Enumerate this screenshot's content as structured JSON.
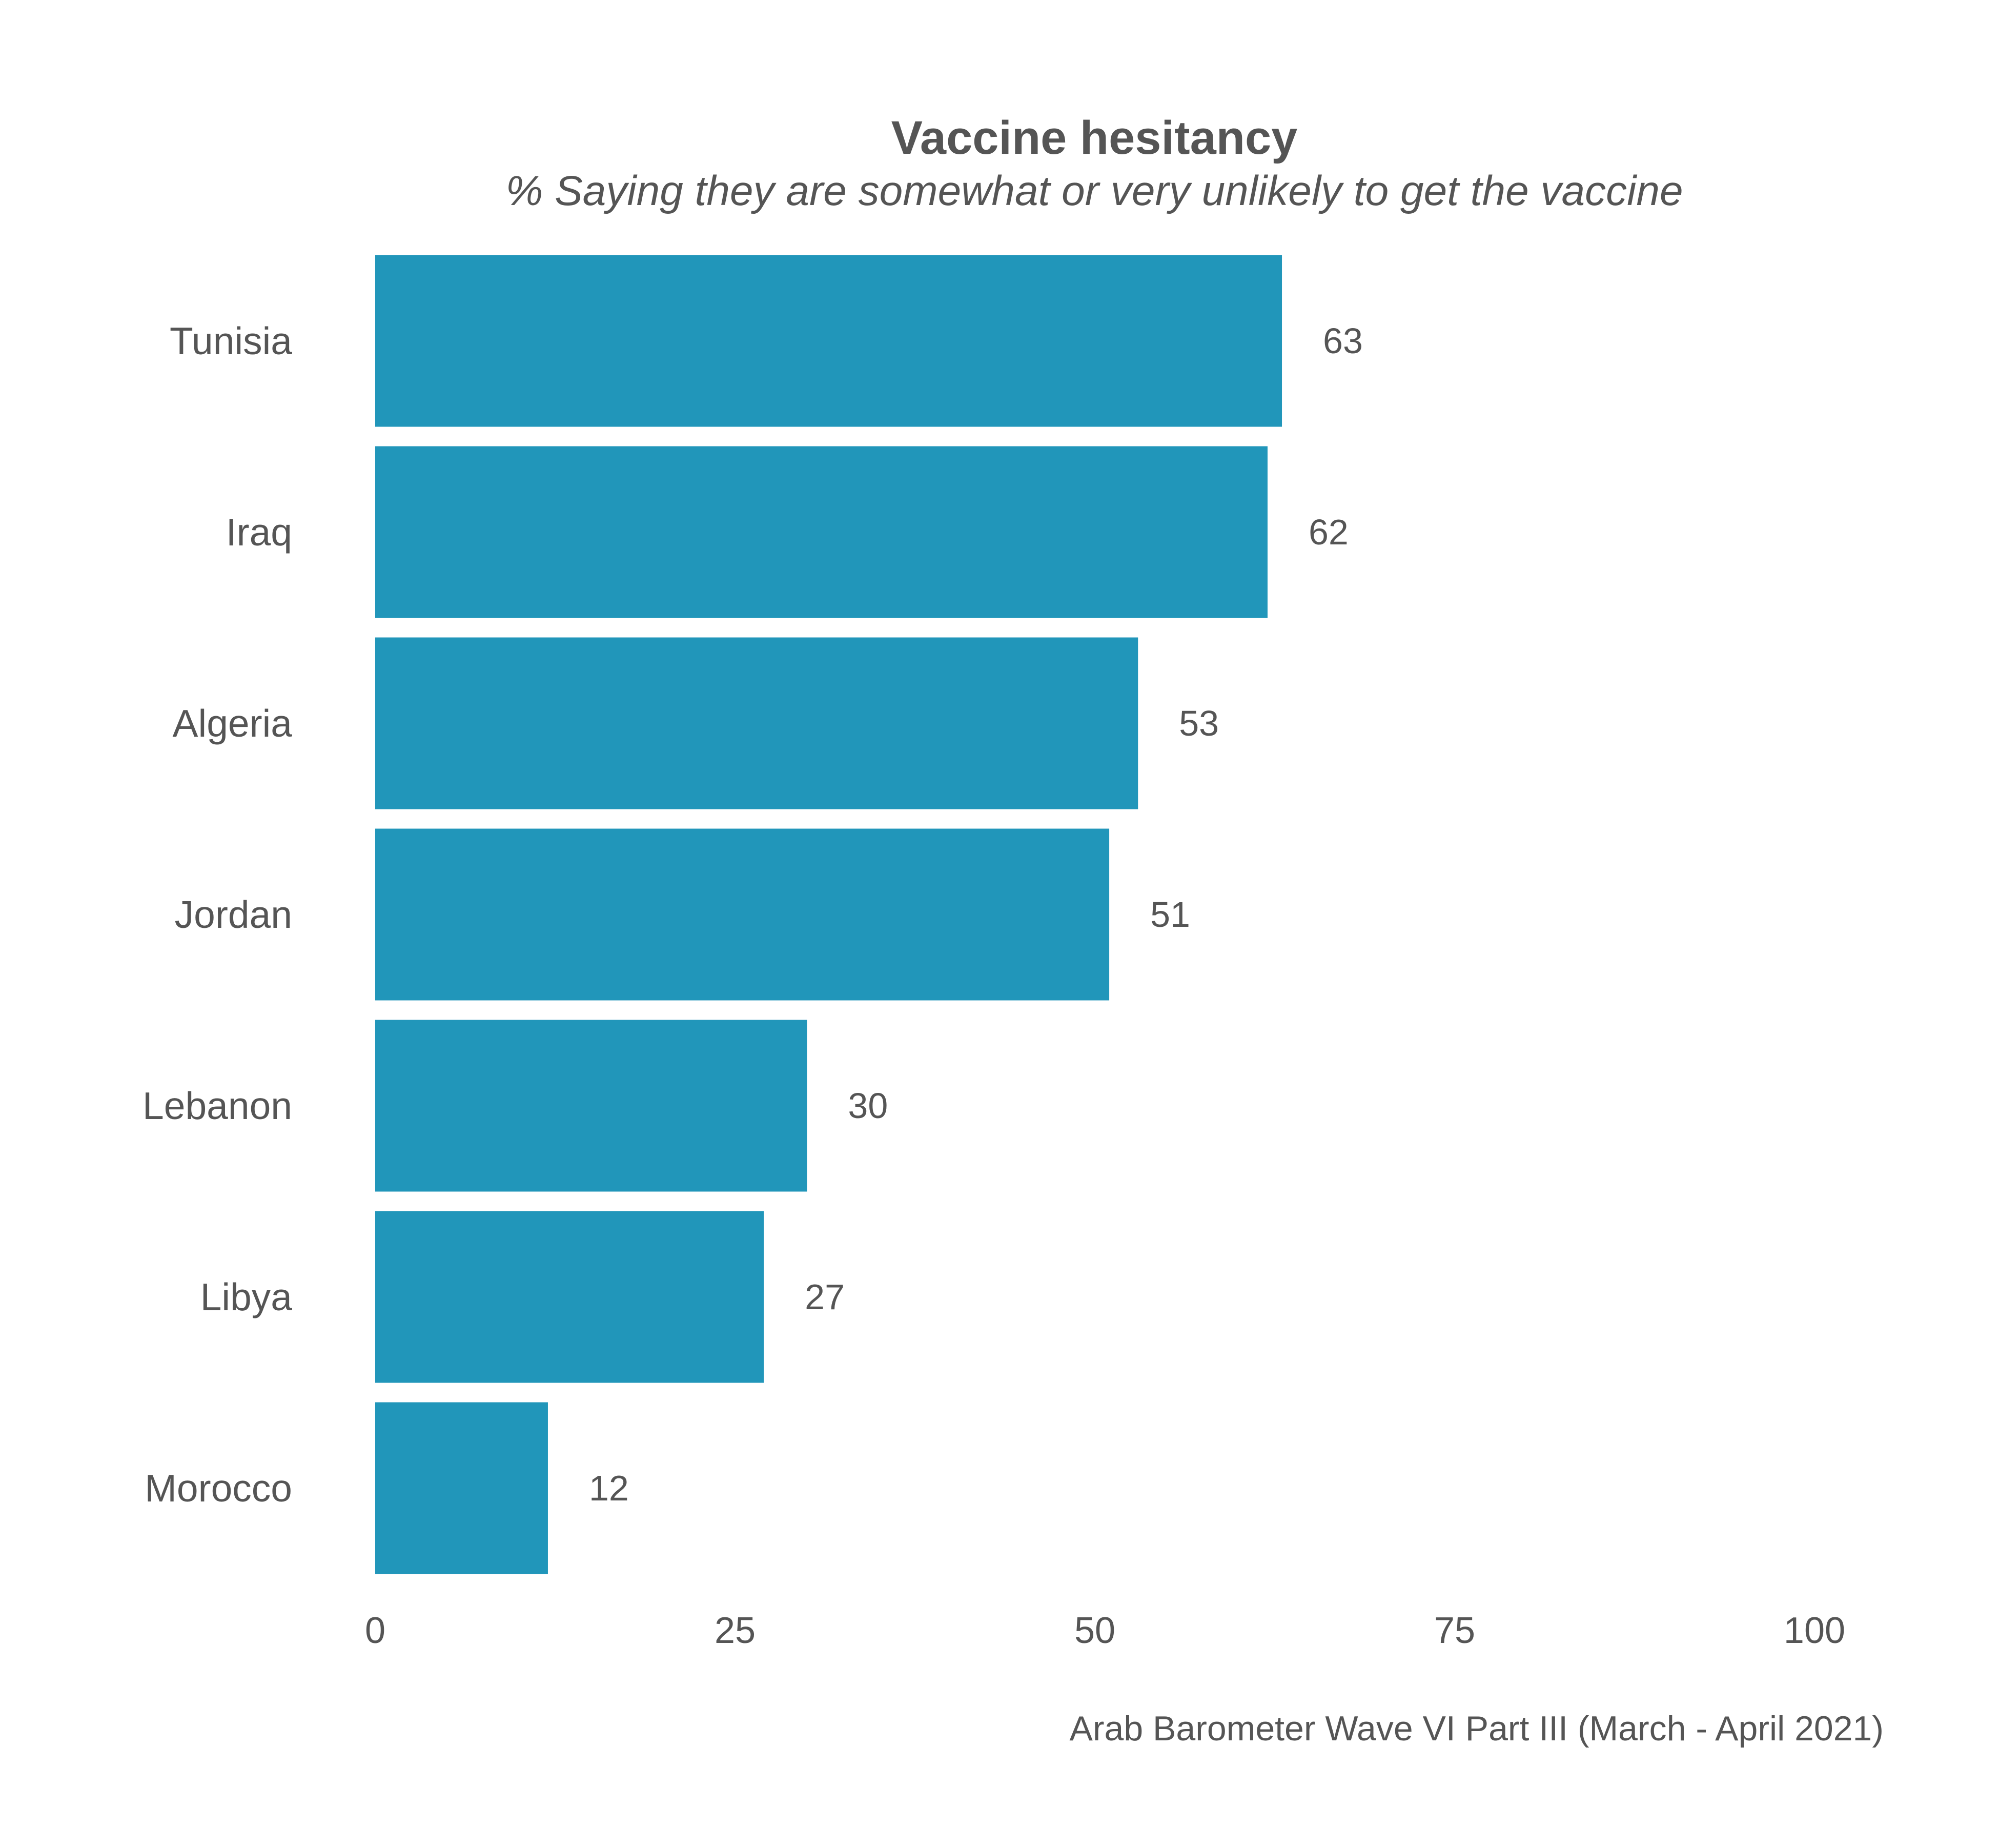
{
  "chart_data": {
    "type": "bar",
    "orientation": "horizontal",
    "title": "Vaccine hesitancy",
    "subtitle": "% Saying they are somewhat or very unlikely to get the vaccine",
    "caption": "Arab Barometer Wave VI Part III (March - April 2021)",
    "categories": [
      "Tunisia",
      "Iraq",
      "Algeria",
      "Jordan",
      "Lebanon",
      "Libya",
      "Morocco"
    ],
    "values": [
      63,
      62,
      53,
      51,
      30,
      27,
      12
    ],
    "value_labels": [
      "63",
      "62",
      "53",
      "51",
      "30",
      "27",
      "12"
    ],
    "xlim": [
      0,
      100
    ],
    "x_ticks": [
      0,
      25,
      50,
      75,
      100
    ],
    "x_tick_labels": [
      "0",
      "25",
      "50",
      "75",
      "100"
    ],
    "xlabel": "",
    "ylabel": "",
    "grid": false,
    "legend": "none",
    "bar_color": "#2196BA",
    "text_color": "#555555"
  }
}
